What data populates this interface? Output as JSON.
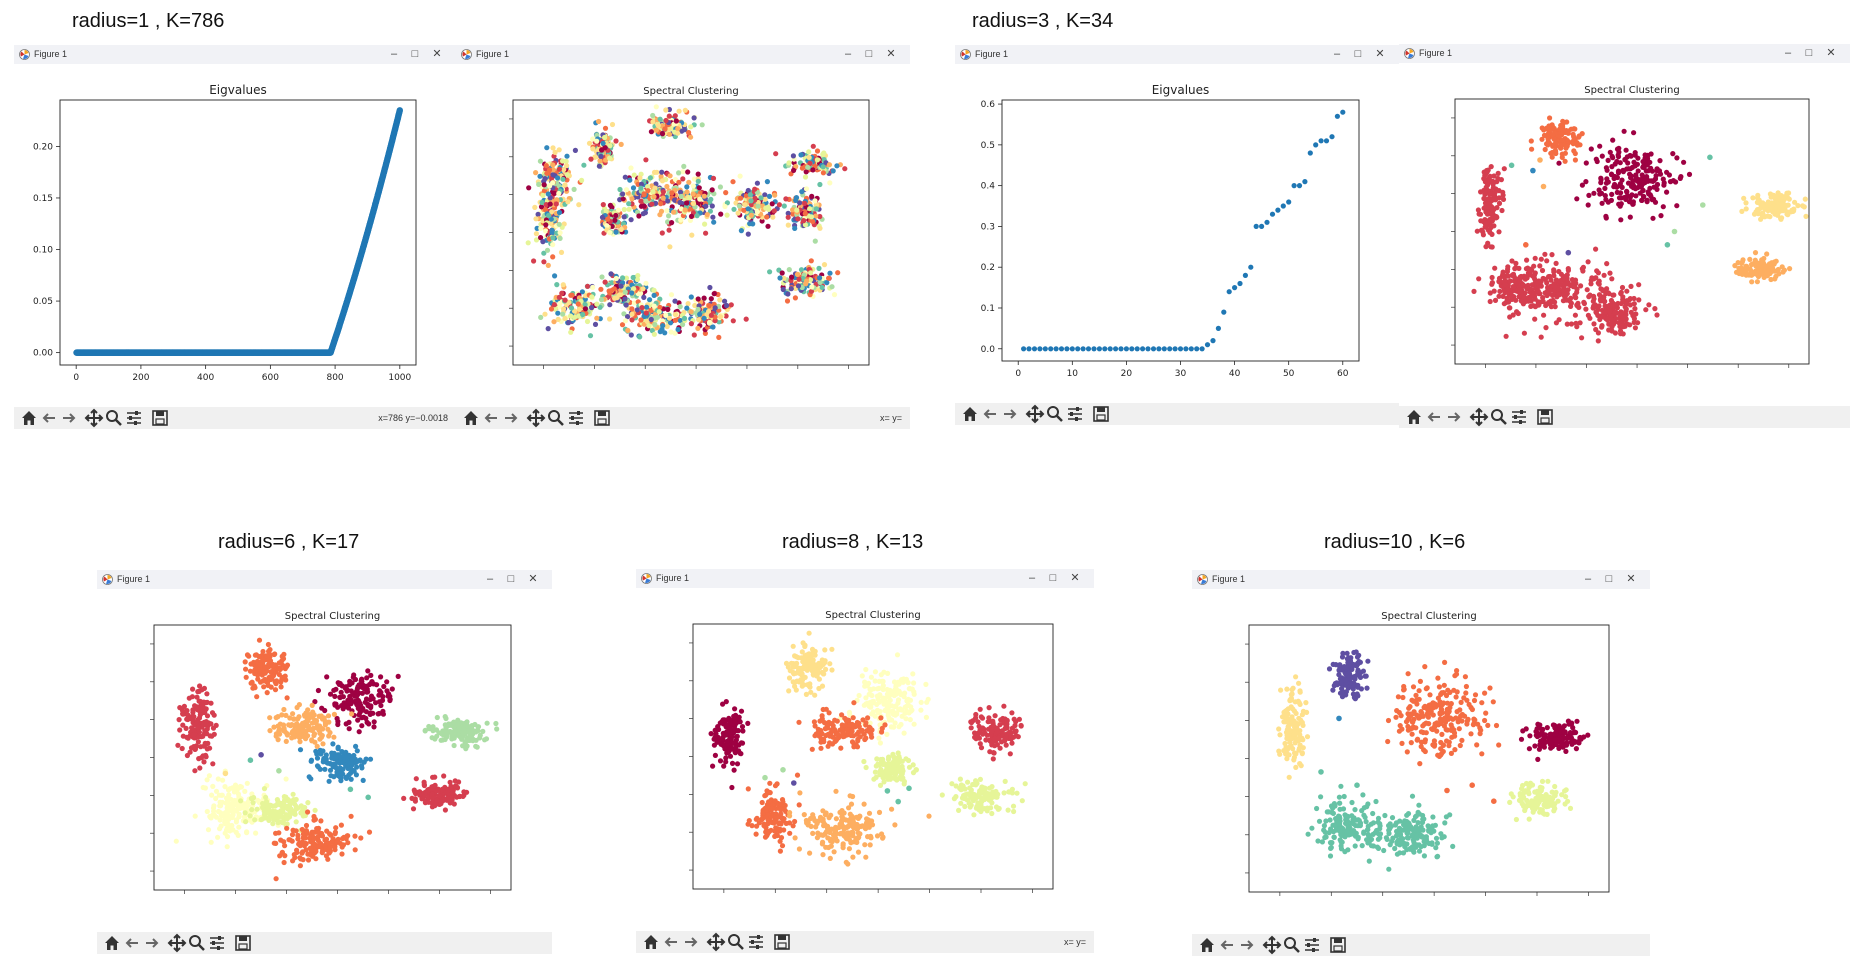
{
  "window_title": "Figure 1",
  "window_controls": {
    "minimize": "–",
    "maximize": "□",
    "close": "✕"
  },
  "captions": {
    "r1": "radius=1 , K=786",
    "r3": "radius=3 , K=34",
    "r6": "radius=6 , K=17",
    "r8": "radius=8 , K=13",
    "r10": "radius=10 , K=6"
  },
  "status": {
    "r1_eig": "x=786  y=−0.0018",
    "r1_sc": "x= y=",
    "r8_sc": "x= y="
  },
  "colors": {
    "eig_point": "#1f77b4",
    "spectral_palette": [
      "#9e0142",
      "#d53e4f",
      "#f46d43",
      "#fdae61",
      "#fee08b",
      "#ffffbf",
      "#e6f598",
      "#abdda4",
      "#66c2a5",
      "#3288bd",
      "#5e4fa2"
    ]
  },
  "chart_data": [
    {
      "id": "r1_eig",
      "type": "scatter",
      "title": "Eigvalues",
      "xlim": [
        -50,
        1050
      ],
      "ylim": [
        -0.012,
        0.245
      ],
      "xticks": [
        "0",
        "200",
        "400",
        "600",
        "800",
        "1000"
      ],
      "xtick_values": [
        0,
        200,
        400,
        600,
        800,
        1000
      ],
      "yticks": [
        "0.00",
        "0.05",
        "0.10",
        "0.15",
        "0.20"
      ],
      "ytick_values": [
        0,
        0.05,
        0.1,
        0.15,
        0.2
      ],
      "model": {
        "n": 1000,
        "k": 786,
        "ymax": 0.235
      }
    },
    {
      "id": "r3_eig",
      "type": "scatter",
      "title": "Eigvalues",
      "xlim": [
        -3,
        63
      ],
      "ylim": [
        -0.03,
        0.61
      ],
      "xticks": [
        "0",
        "10",
        "20",
        "30",
        "40",
        "50",
        "60"
      ],
      "xtick_values": [
        0,
        10,
        20,
        30,
        40,
        50,
        60
      ],
      "yticks": [
        "0.0",
        "0.1",
        "0.2",
        "0.3",
        "0.4",
        "0.5",
        "0.6"
      ],
      "ytick_values": [
        0,
        0.1,
        0.2,
        0.3,
        0.4,
        0.5,
        0.6
      ],
      "x": [
        1,
        2,
        3,
        4,
        5,
        6,
        7,
        8,
        9,
        10,
        11,
        12,
        13,
        14,
        15,
        16,
        17,
        18,
        19,
        20,
        21,
        22,
        23,
        24,
        25,
        26,
        27,
        28,
        29,
        30,
        31,
        32,
        33,
        34,
        35,
        36,
        37,
        38,
        39,
        40,
        41,
        42,
        43,
        44,
        45,
        46,
        47,
        48,
        49,
        50,
        51,
        52,
        53,
        54,
        55,
        56,
        57,
        58,
        59,
        60
      ],
      "y": [
        0,
        0,
        0,
        0,
        0,
        0,
        0,
        0,
        0,
        0,
        0,
        0,
        0,
        0,
        0,
        0,
        0,
        0,
        0,
        0,
        0,
        0,
        0,
        0,
        0,
        0,
        0,
        0,
        0,
        0,
        0,
        0,
        0,
        0,
        0.01,
        0.02,
        0.05,
        0.09,
        0.14,
        0.15,
        0.16,
        0.18,
        0.2,
        0.3,
        0.3,
        0.31,
        0.33,
        0.34,
        0.35,
        0.36,
        0.4,
        0.4,
        0.41,
        0.48,
        0.5,
        0.51,
        0.51,
        0.52,
        0.57,
        0.58
      ]
    },
    {
      "id": "r1_sc",
      "type": "scatter",
      "title": "Spectral Clustering",
      "mode": "mixed",
      "clusters": [
        [
          0.12,
          0.3,
          0.05,
          0.09
        ],
        [
          0.1,
          0.45,
          0.03,
          0.14
        ],
        [
          0.25,
          0.18,
          0.03,
          0.06
        ],
        [
          0.3,
          0.72,
          0.08,
          0.05
        ],
        [
          0.44,
          0.1,
          0.06,
          0.04
        ],
        [
          0.38,
          0.35,
          0.08,
          0.07
        ],
        [
          0.5,
          0.38,
          0.07,
          0.09
        ],
        [
          0.68,
          0.4,
          0.06,
          0.07
        ],
        [
          0.82,
          0.42,
          0.04,
          0.06
        ],
        [
          0.82,
          0.68,
          0.06,
          0.05
        ],
        [
          0.28,
          0.45,
          0.03,
          0.05
        ],
        [
          0.18,
          0.78,
          0.07,
          0.07
        ],
        [
          0.4,
          0.82,
          0.08,
          0.07
        ],
        [
          0.55,
          0.8,
          0.05,
          0.06
        ],
        [
          0.85,
          0.24,
          0.06,
          0.04
        ]
      ]
    },
    {
      "id": "r3_sc",
      "type": "scatter",
      "title": "Spectral Clustering",
      "mode": "solid",
      "clusters": [
        [
          0.1,
          0.4,
          0.03,
          0.12,
          1
        ],
        [
          0.3,
          0.15,
          0.05,
          0.06,
          2
        ],
        [
          0.5,
          0.3,
          0.12,
          0.11,
          0
        ],
        [
          0.9,
          0.41,
          0.06,
          0.05,
          4
        ],
        [
          0.86,
          0.64,
          0.06,
          0.04,
          3
        ],
        [
          0.3,
          0.72,
          0.12,
          0.1,
          1
        ],
        [
          0.17,
          0.71,
          0.07,
          0.08,
          1
        ],
        [
          0.45,
          0.8,
          0.08,
          0.08,
          1
        ]
      ],
      "scattered": [
        [
          0.24,
          0.23,
          3
        ],
        [
          0.22,
          0.27,
          9
        ],
        [
          0.16,
          0.25,
          8
        ],
        [
          0.6,
          0.55,
          8
        ],
        [
          0.62,
          0.5,
          7
        ],
        [
          0.2,
          0.55,
          2
        ],
        [
          0.72,
          0.22,
          8
        ],
        [
          0.7,
          0.4,
          7
        ],
        [
          0.32,
          0.58,
          10
        ],
        [
          0.25,
          0.33,
          3
        ]
      ]
    },
    {
      "id": "r6_sc",
      "type": "scatter",
      "title": "Spectral Clustering",
      "mode": "solid",
      "clusters": [
        [
          0.12,
          0.38,
          0.04,
          0.12,
          1
        ],
        [
          0.32,
          0.17,
          0.05,
          0.08,
          2
        ],
        [
          0.58,
          0.28,
          0.08,
          0.09,
          0
        ],
        [
          0.42,
          0.38,
          0.08,
          0.06,
          3
        ],
        [
          0.85,
          0.4,
          0.07,
          0.05,
          7
        ],
        [
          0.52,
          0.52,
          0.06,
          0.06,
          9
        ],
        [
          0.8,
          0.64,
          0.07,
          0.05,
          1
        ],
        [
          0.23,
          0.7,
          0.09,
          0.1,
          5
        ],
        [
          0.35,
          0.7,
          0.07,
          0.05,
          6
        ],
        [
          0.44,
          0.82,
          0.09,
          0.07,
          2
        ]
      ],
      "scattered": [
        [
          0.3,
          0.49,
          10
        ],
        [
          0.27,
          0.51,
          8
        ],
        [
          0.6,
          0.65,
          8
        ],
        [
          0.55,
          0.62,
          8
        ],
        [
          0.35,
          0.55,
          7
        ],
        [
          0.2,
          0.56,
          4
        ]
      ]
    },
    {
      "id": "r8_sc",
      "type": "scatter",
      "title": "Spectral Clustering",
      "mode": "solid",
      "clusters": [
        [
          0.1,
          0.42,
          0.04,
          0.1,
          0
        ],
        [
          0.32,
          0.17,
          0.05,
          0.08,
          4
        ],
        [
          0.54,
          0.3,
          0.08,
          0.11,
          5
        ],
        [
          0.42,
          0.4,
          0.08,
          0.06,
          2
        ],
        [
          0.85,
          0.4,
          0.07,
          0.06,
          1
        ],
        [
          0.55,
          0.55,
          0.05,
          0.05,
          6
        ],
        [
          0.8,
          0.65,
          0.07,
          0.05,
          6
        ],
        [
          0.22,
          0.72,
          0.05,
          0.09,
          2
        ],
        [
          0.42,
          0.77,
          0.1,
          0.09,
          3
        ]
      ],
      "scattered": [
        [
          0.25,
          0.55,
          7
        ],
        [
          0.2,
          0.58,
          7
        ],
        [
          0.28,
          0.6,
          10
        ],
        [
          0.6,
          0.62,
          8
        ],
        [
          0.57,
          0.67,
          8
        ],
        [
          0.54,
          0.63,
          8
        ],
        [
          0.62,
          0.55,
          6
        ]
      ]
    },
    {
      "id": "r10_sc",
      "type": "scatter",
      "title": "Spectral Clustering",
      "mode": "solid",
      "clusters": [
        [
          0.12,
          0.38,
          0.03,
          0.14,
          4
        ],
        [
          0.28,
          0.19,
          0.04,
          0.07,
          10
        ],
        [
          0.53,
          0.35,
          0.12,
          0.13,
          2
        ],
        [
          0.85,
          0.42,
          0.07,
          0.05,
          0
        ],
        [
          0.8,
          0.65,
          0.07,
          0.05,
          6
        ],
        [
          0.27,
          0.75,
          0.08,
          0.08,
          8
        ],
        [
          0.45,
          0.79,
          0.1,
          0.08,
          8
        ]
      ],
      "scattered": [
        [
          0.2,
          0.55,
          8
        ],
        [
          0.3,
          0.6,
          8
        ],
        [
          0.55,
          0.62,
          2
        ],
        [
          0.62,
          0.6,
          2
        ],
        [
          0.25,
          0.35,
          9
        ],
        [
          0.68,
          0.66,
          2
        ]
      ]
    }
  ]
}
